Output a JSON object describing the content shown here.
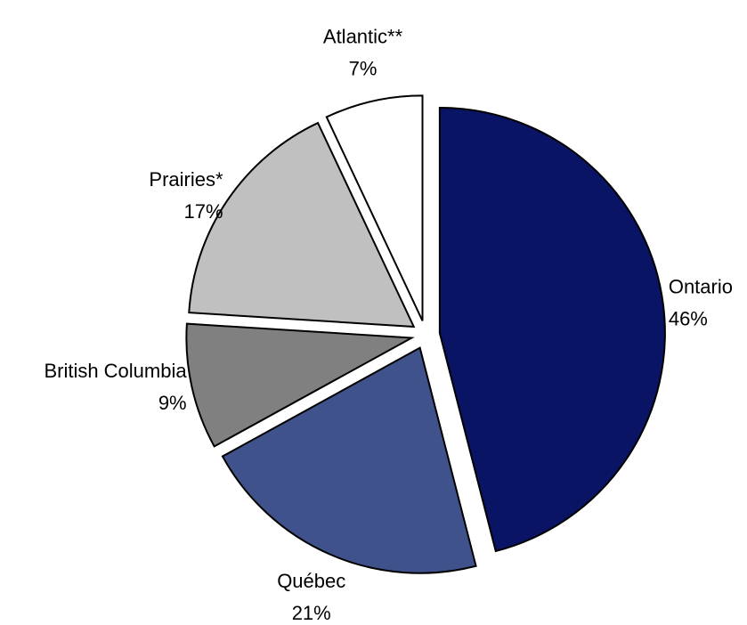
{
  "chart_data": {
    "type": "pie",
    "categories": [
      "Ontario",
      "Québec",
      "British Columbia",
      "Prairies*",
      "Atlantic**"
    ],
    "values": [
      46,
      21,
      9,
      17,
      7
    ],
    "value_labels": [
      "46%",
      "21%",
      "9%",
      "17%",
      "7%"
    ],
    "colors": [
      "#0a1464",
      "#3f528c",
      "#808080",
      "#c0c0c0",
      "#ffffff"
    ]
  }
}
